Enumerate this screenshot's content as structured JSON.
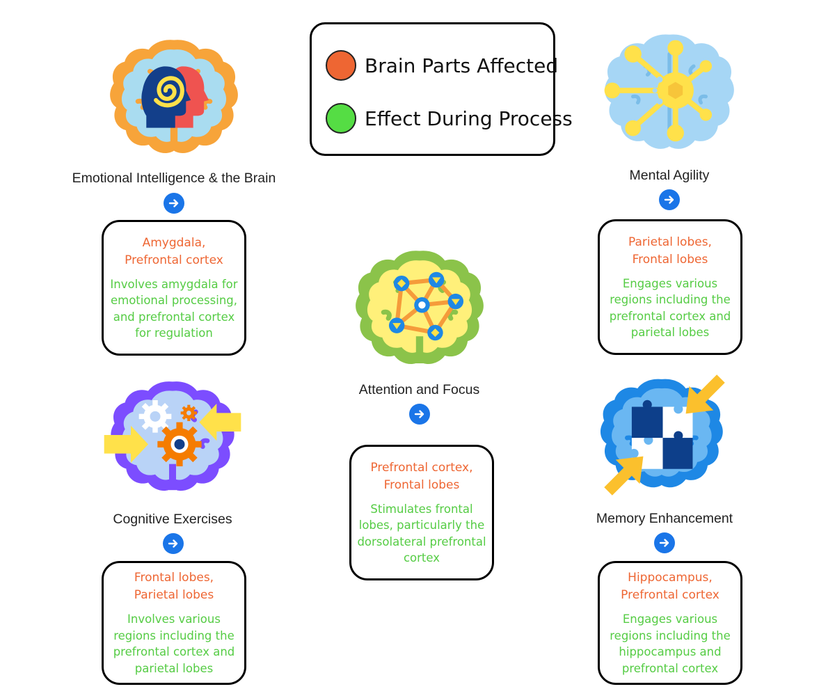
{
  "legend": {
    "items": [
      {
        "label": "Brain Parts Affected",
        "color": "#ee6633"
      },
      {
        "label": "Effect During Process",
        "color": "#55dd44"
      }
    ]
  },
  "nodes": {
    "emotional": {
      "title": "Emotional Intelligence & the Brain",
      "icon": "brain-heads-spiral-icon",
      "parts": [
        "Amygdala,",
        "Prefrontal cortex"
      ],
      "effect": [
        "Involves amygdala for",
        "emotional processing,",
        "and prefrontal cortex",
        "for regulation"
      ]
    },
    "agility": {
      "title": "Mental Agility",
      "icon": "brain-network-hub-icon",
      "parts": [
        "Parietal lobes,",
        "Frontal lobes"
      ],
      "effect": [
        "Engages various",
        "regions including the",
        "prefrontal cortex and",
        "parietal lobes"
      ]
    },
    "attention": {
      "title": "Attention and Focus",
      "icon": "brain-nodes-icon",
      "parts": [
        "Prefrontal cortex,",
        "Frontal lobes"
      ],
      "effect": [
        "Stimulates frontal",
        "lobes, particularly the",
        "dorsolateral prefrontal",
        "cortex"
      ]
    },
    "cognitive": {
      "title": "Cognitive Exercises",
      "icon": "brain-gears-icon",
      "parts": [
        "Frontal lobes,",
        "Parietal lobes"
      ],
      "effect": [
        "Involves various",
        "regions including the",
        "prefrontal cortex and",
        "parietal lobes"
      ]
    },
    "memory": {
      "title": "Memory Enhancement",
      "icon": "brain-puzzle-icon",
      "parts": [
        "Hippocampus,",
        "Prefrontal cortex"
      ],
      "effect": [
        "Engages various",
        "regions including the",
        "hippocampus and",
        "prefrontal cortex"
      ]
    }
  }
}
